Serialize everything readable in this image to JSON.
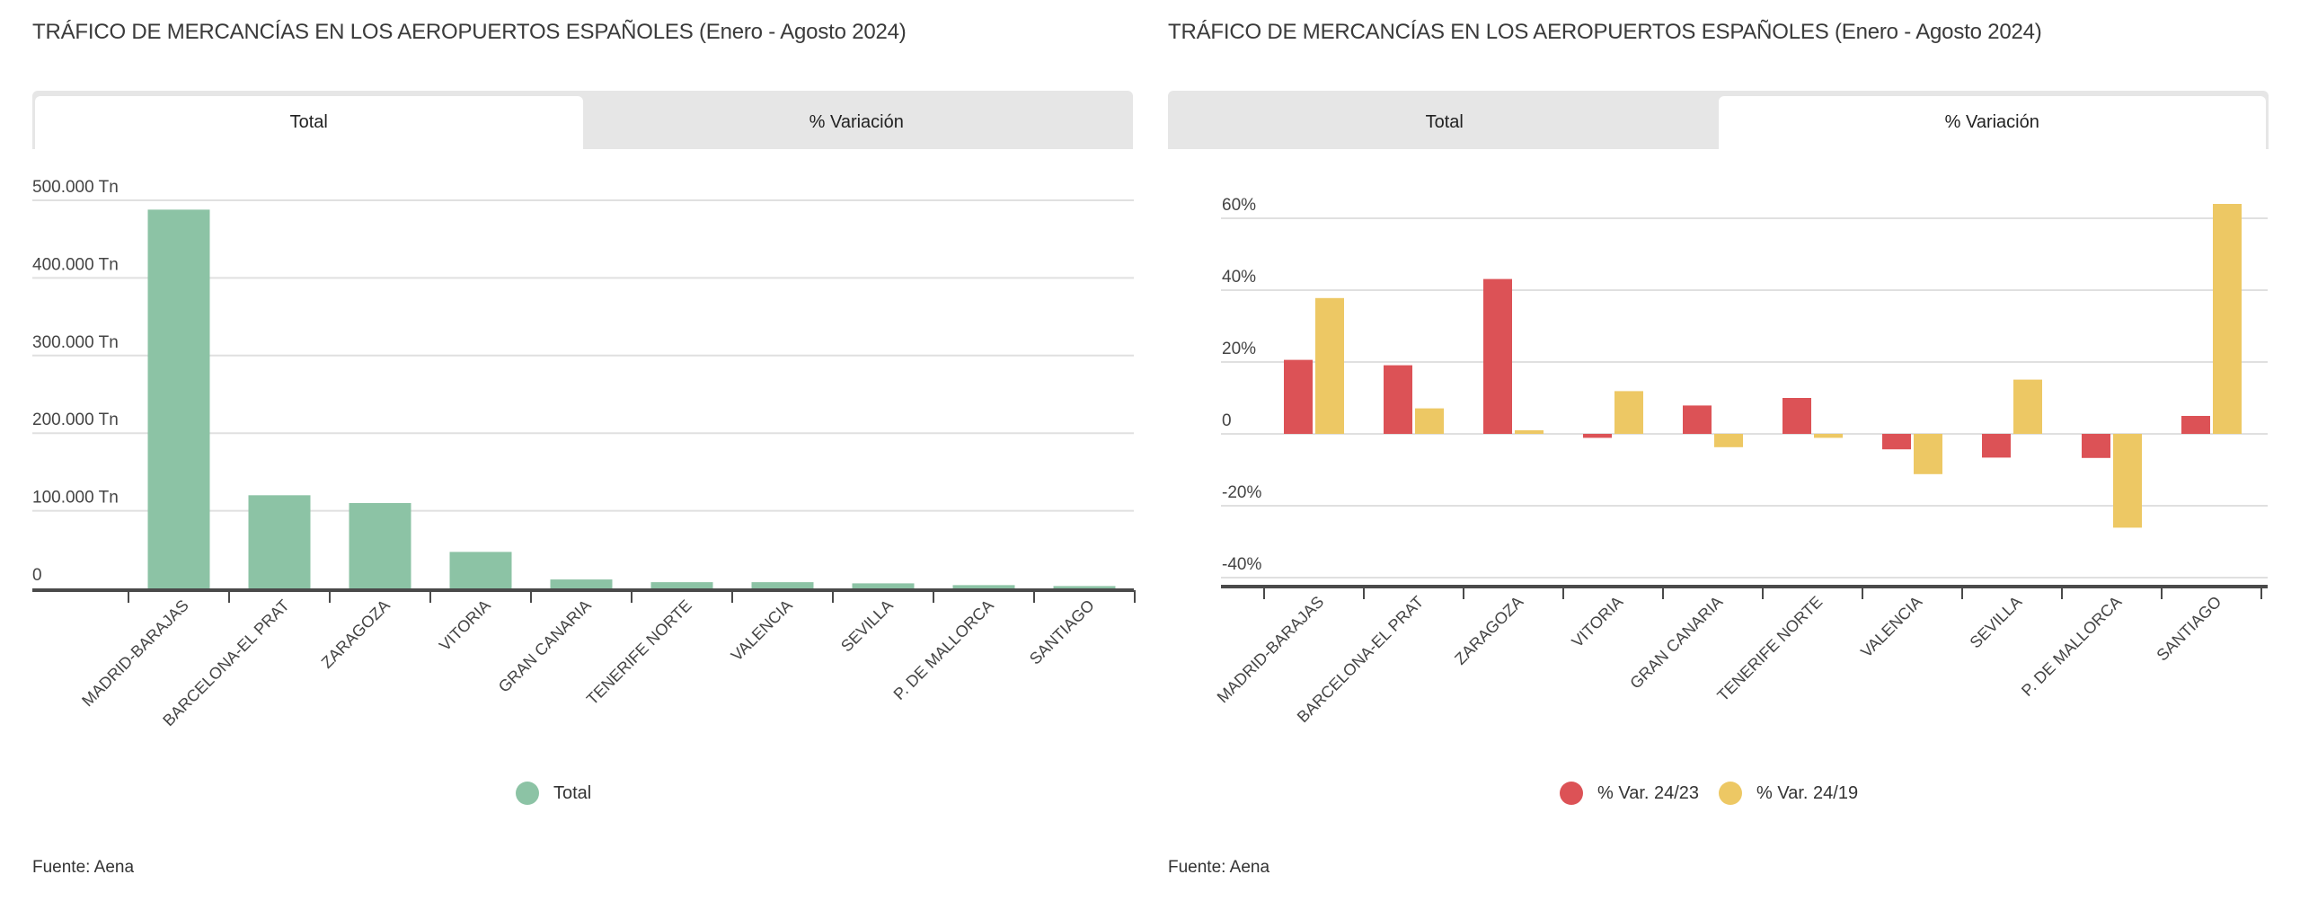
{
  "panels": [
    {
      "title": "TRÁFICO DE MERCANCÍAS EN LOS AEROPUERTOS ESPAÑOLES (Enero - Agosto 2024)",
      "tabs": [
        {
          "label": "Total",
          "active": true
        },
        {
          "label": "% Variación",
          "active": false
        }
      ],
      "source": "Fuente: Aena"
    },
    {
      "title": "TRÁFICO DE MERCANCÍAS EN LOS AEROPUERTOS ESPAÑOLES (Enero - Agosto 2024)",
      "tabs": [
        {
          "label": "Total",
          "active": false
        },
        {
          "label": "% Variación",
          "active": true
        }
      ],
      "source": "Fuente: Aena"
    }
  ],
  "chart_data": [
    {
      "type": "bar",
      "title": "TRÁFICO DE MERCANCÍAS EN LOS AEROPUERTOS ESPAÑOLES (Enero - Agosto 2024)",
      "xlabel": "",
      "ylabel": "",
      "categories": [
        "MADRID-BARAJAS",
        "BARCELONA-EL PRAT",
        "ZARAGOZA",
        "VITORIA",
        "GRAN CANARIA",
        "TENERIFE NORTE",
        "VALENCIA",
        "SEVILLA",
        "P. DE MALLORCA",
        "SANTIAGO"
      ],
      "series": [
        {
          "name": "Total",
          "color": "#8cc3a5",
          "values": [
            488000,
            120000,
            110000,
            47000,
            11500,
            8000,
            8000,
            6500,
            4200,
            3000
          ]
        }
      ],
      "ylim": [
        0,
        500000
      ],
      "yticks": [
        0,
        100000,
        200000,
        300000,
        400000,
        500000
      ],
      "ytick_labels": [
        "0",
        "100.000 Tn",
        "200.000 Tn",
        "300.000 Tn",
        "400.000 Tn",
        "500.000 Tn"
      ],
      "grid": true,
      "legend": "bottom-center",
      "unit": "Tn"
    },
    {
      "type": "bar",
      "title": "TRÁFICO DE MERCANCÍAS EN LOS AEROPUERTOS ESPAÑOLES (Enero - Agosto 2024)",
      "xlabel": "",
      "ylabel": "",
      "categories": [
        "MADRID-BARAJAS",
        "BARCELONA-EL PRAT",
        "ZARAGOZA",
        "VITORIA",
        "GRAN CANARIA",
        "TENERIFE NORTE",
        "VALENCIA",
        "SEVILLA",
        "P. DE MALLORCA",
        "SANTIAGO"
      ],
      "series": [
        {
          "name": "% Var. 24/23",
          "color": "#dc5256",
          "values": [
            20.6,
            19.1,
            43.1,
            -1.1,
            7.9,
            10.0,
            -4.3,
            -6.6,
            -6.7,
            5.0
          ]
        },
        {
          "name": "% Var. 24/19",
          "color": "#edc864",
          "values": [
            37.8,
            7.1,
            1.0,
            11.9,
            -3.7,
            -1.1,
            -11.2,
            15.1,
            -26.1,
            64.0
          ]
        }
      ],
      "ylim": [
        -40,
        60
      ],
      "yticks": [
        -40,
        -20,
        0,
        20,
        40,
        60
      ],
      "ytick_labels": [
        "-40%",
        "-20%",
        "0",
        "20%",
        "40%",
        "60%"
      ],
      "grid": true,
      "legend": "bottom-center",
      "unit": "%"
    }
  ]
}
